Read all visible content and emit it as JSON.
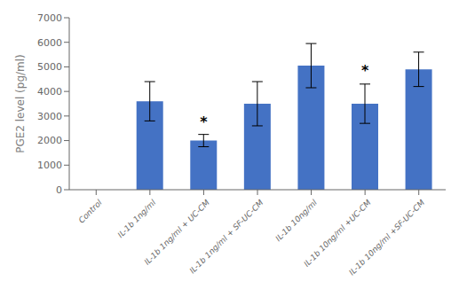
{
  "chart_data": {
    "type": "bar",
    "categories": [
      "Control",
      "IL-1b 1ng/ml",
      "IL-1b 1ng/ml + UC-CM",
      "IL-1b 1ng/ml + SF-UC-CM",
      "IL-1b 10ng/ml",
      "IL-1b 10ng/ml +UC-CM",
      "IL-1b 10ng/ml +SF-UC-CM"
    ],
    "values": [
      0,
      3600,
      2000,
      3500,
      5050,
      3500,
      4900
    ],
    "errors": [
      0,
      800,
      250,
      900,
      900,
      800,
      700
    ],
    "color": "#4472C4",
    "ylim": [
      0,
      7000
    ],
    "yticks": [
      0,
      1000,
      2000,
      3000,
      4000,
      5000,
      6000,
      7000
    ],
    "ylabel": "PGE2 level (pg/ml)",
    "annotations": [
      {
        "text": "*",
        "x": "IL-1b 1ng/ml + UC-CM",
        "y": 2300
      },
      {
        "text": "*",
        "x": "IL-1b 10ng/ml +UC-CM",
        "y": 4400
      }
    ],
    "grid": false
  }
}
